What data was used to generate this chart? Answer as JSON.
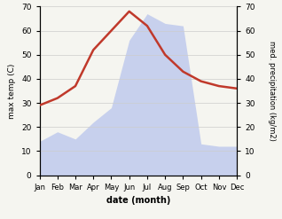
{
  "months": [
    "Jan",
    "Feb",
    "Mar",
    "Apr",
    "May",
    "Jun",
    "Jul",
    "Aug",
    "Sep",
    "Oct",
    "Nov",
    "Dec"
  ],
  "temperature": [
    29,
    32,
    37,
    52,
    60,
    68,
    62,
    50,
    43,
    39,
    37,
    36
  ],
  "precipitation": [
    14,
    18,
    15,
    22,
    28,
    56,
    67,
    63,
    62,
    13,
    12,
    12
  ],
  "temp_color": "#c0392b",
  "precip_fill_color": "#b8c4ec",
  "ylim_temp": [
    0,
    70
  ],
  "ylim_precip": [
    0,
    70
  ],
  "xlabel": "date (month)",
  "ylabel_left": "max temp (C)",
  "ylabel_right": "med. precipitation (kg/m2)",
  "bg_color": "#f5f5f0",
  "grid_color": "#cccccc",
  "temp_linewidth": 1.8
}
